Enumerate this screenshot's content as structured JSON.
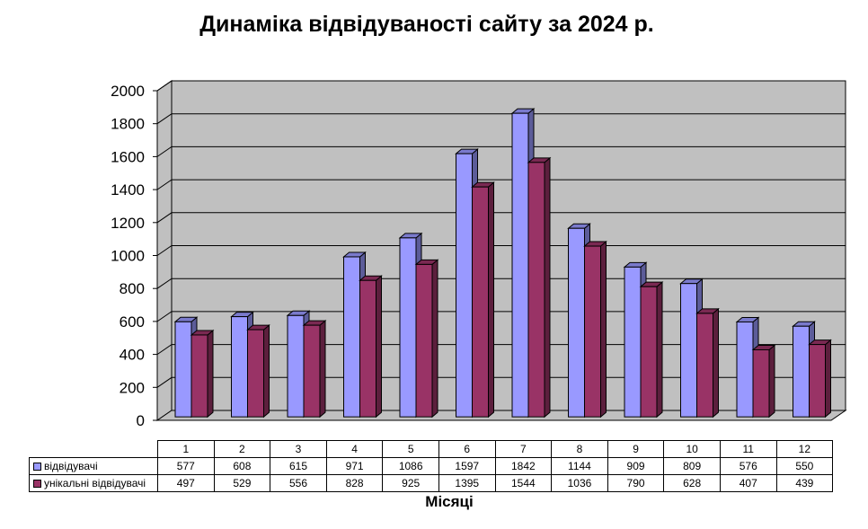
{
  "chart_data": {
    "type": "bar",
    "title": "Динаміка відвідуваності сайту за 2024 р.",
    "xlabel": "Місяці",
    "ylabel": "",
    "categories": [
      "1",
      "2",
      "3",
      "4",
      "5",
      "6",
      "7",
      "8",
      "9",
      "10",
      "11",
      "12"
    ],
    "series": [
      {
        "name": "відвідувачі",
        "color": "#9999ff",
        "values": [
          577,
          608,
          615,
          971,
          1086,
          1597,
          1842,
          1144,
          909,
          809,
          576,
          550
        ]
      },
      {
        "name": "унікальні відвідувачі",
        "color": "#993366",
        "values": [
          497,
          529,
          556,
          828,
          925,
          1395,
          1544,
          1036,
          790,
          628,
          407,
          439
        ]
      }
    ],
    "ylim": [
      0,
      2000
    ],
    "yticks": [
      0,
      200,
      400,
      600,
      800,
      1000,
      1200,
      1400,
      1600,
      1800,
      2000
    ],
    "grid": true,
    "legend": "data-table",
    "wall_color": "#c0c0c0"
  }
}
